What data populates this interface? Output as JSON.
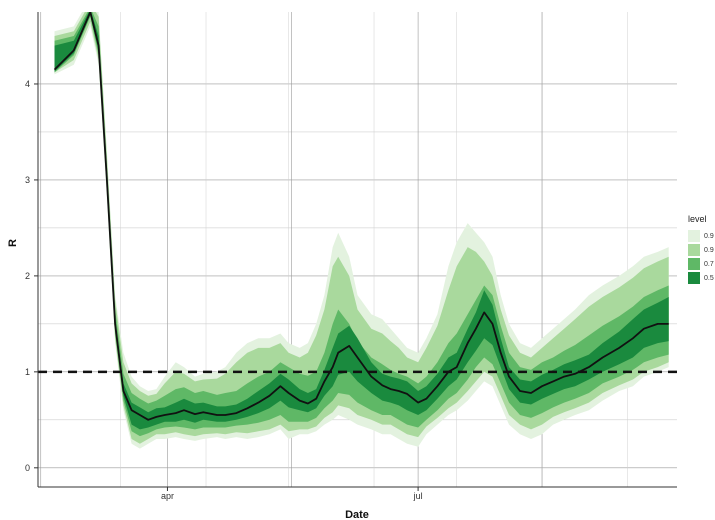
{
  "chart_data": {
    "type": "area",
    "xlabel": "Date",
    "ylabel": "R",
    "x_axis": {
      "type": "date",
      "range": [
        "2020-02-14",
        "2020-10-03"
      ],
      "ticks": [
        "2020-04-01",
        "2020-07-01"
      ],
      "tick_labels": [
        "apr",
        "jul"
      ]
    },
    "y_axis": {
      "range": [
        -0.2,
        4.75
      ],
      "ticks": [
        0,
        1,
        2,
        3,
        4
      ],
      "tick_labels": [
        "0",
        "1",
        "2",
        "3",
        "4"
      ]
    },
    "grid": true,
    "reference_line": {
      "y": 1,
      "style": "dashed"
    },
    "legend": {
      "title": "level",
      "position": "right",
      "labels": [
        "0.9",
        "0.9",
        "0.7",
        "0.5"
      ],
      "colors": [
        "#e3f2df",
        "#a9d99d",
        "#5fb866",
        "#1a8a3e"
      ]
    },
    "colors": {
      "line": "#111111",
      "band_outer": "#e3f2df",
      "band_2": "#a9d99d",
      "band_3": "#5fb866",
      "band_inner": "#1a8a3e"
    },
    "series": [
      {
        "x": [
          "2020-02-20",
          "2020-02-27",
          "2020-03-04",
          "2020-03-07",
          "2020-03-10",
          "2020-03-13",
          "2020-03-16",
          "2020-03-19",
          "2020-03-22",
          "2020-03-25",
          "2020-03-28",
          "2020-03-31",
          "2020-04-04",
          "2020-04-07",
          "2020-04-11",
          "2020-04-14",
          "2020-04-19",
          "2020-04-22",
          "2020-04-26",
          "2020-04-30",
          "2020-05-04",
          "2020-05-08",
          "2020-05-12",
          "2020-05-15",
          "2020-05-19",
          "2020-05-22",
          "2020-05-25",
          "2020-05-28",
          "2020-05-31",
          "2020-06-02",
          "2020-06-06",
          "2020-06-09",
          "2020-06-14",
          "2020-06-18",
          "2020-06-21",
          "2020-06-24",
          "2020-06-27",
          "2020-07-01",
          "2020-07-04",
          "2020-07-08",
          "2020-07-12",
          "2020-07-15",
          "2020-07-19",
          "2020-07-22",
          "2020-07-25",
          "2020-07-28",
          "2020-07-31",
          "2020-08-03",
          "2020-08-07",
          "2020-08-11",
          "2020-08-15",
          "2020-08-19",
          "2020-08-23",
          "2020-08-27",
          "2020-09-01",
          "2020-09-06",
          "2020-09-12",
          "2020-09-17",
          "2020-09-21",
          "2020-09-26",
          "2020-09-30"
        ],
        "median": [
          4.15,
          4.35,
          4.75,
          4.4,
          3.0,
          1.5,
          0.8,
          0.6,
          0.55,
          0.5,
          0.53,
          0.55,
          0.57,
          0.6,
          0.56,
          0.58,
          0.55,
          0.55,
          0.57,
          0.62,
          0.68,
          0.75,
          0.85,
          0.78,
          0.7,
          0.67,
          0.72,
          0.9,
          1.05,
          1.2,
          1.27,
          1.15,
          0.95,
          0.86,
          0.82,
          0.8,
          0.77,
          0.68,
          0.72,
          0.85,
          1.0,
          1.05,
          1.3,
          1.45,
          1.62,
          1.5,
          1.2,
          0.95,
          0.8,
          0.78,
          0.85,
          0.9,
          0.95,
          0.98,
          1.05,
          1.15,
          1.25,
          1.35,
          1.45,
          1.5,
          1.5
        ],
        "level_0.9_outer": {
          "lower": [
            4.1,
            4.2,
            4.6,
            4.2,
            2.8,
            1.3,
            0.6,
            0.25,
            0.2,
            0.25,
            0.3,
            0.3,
            0.32,
            0.3,
            0.28,
            0.3,
            0.32,
            0.3,
            0.32,
            0.3,
            0.32,
            0.35,
            0.4,
            0.3,
            0.35,
            0.35,
            0.38,
            0.45,
            0.5,
            0.55,
            0.5,
            0.45,
            0.4,
            0.35,
            0.35,
            0.3,
            0.25,
            0.22,
            0.35,
            0.45,
            0.55,
            0.6,
            0.7,
            0.8,
            0.9,
            0.85,
            0.65,
            0.45,
            0.35,
            0.3,
            0.35,
            0.45,
            0.5,
            0.55,
            0.6,
            0.7,
            0.8,
            0.85,
            0.95,
            1.0,
            1.05
          ],
          "upper": [
            4.55,
            4.6,
            4.9,
            4.75,
            3.3,
            1.8,
            1.2,
            0.95,
            0.85,
            0.8,
            0.82,
            0.95,
            1.1,
            1.05,
            0.95,
            0.98,
            1.0,
            1.05,
            1.2,
            1.3,
            1.35,
            1.35,
            1.4,
            1.3,
            1.25,
            1.3,
            1.5,
            1.8,
            2.3,
            2.45,
            2.2,
            1.8,
            1.6,
            1.55,
            1.45,
            1.35,
            1.25,
            1.2,
            1.35,
            1.6,
            2.1,
            2.35,
            2.55,
            2.45,
            2.35,
            2.2,
            1.8,
            1.5,
            1.3,
            1.25,
            1.35,
            1.45,
            1.55,
            1.65,
            1.8,
            1.9,
            2.0,
            2.1,
            2.2,
            2.25,
            2.3
          ]
        },
        "level_0.9_inner": {
          "lower": [
            4.12,
            4.25,
            4.65,
            4.25,
            2.85,
            1.35,
            0.65,
            0.3,
            0.25,
            0.3,
            0.35,
            0.35,
            0.37,
            0.35,
            0.33,
            0.35,
            0.36,
            0.35,
            0.37,
            0.36,
            0.38,
            0.4,
            0.45,
            0.38,
            0.4,
            0.4,
            0.43,
            0.52,
            0.58,
            0.65,
            0.62,
            0.55,
            0.5,
            0.45,
            0.45,
            0.4,
            0.35,
            0.32,
            0.43,
            0.52,
            0.62,
            0.68,
            0.8,
            0.9,
            1.0,
            0.95,
            0.75,
            0.55,
            0.45,
            0.4,
            0.45,
            0.53,
            0.58,
            0.62,
            0.68,
            0.78,
            0.86,
            0.92,
            1.0,
            1.05,
            1.1
          ],
          "upper": [
            4.5,
            4.55,
            4.85,
            4.7,
            3.25,
            1.75,
            1.1,
            0.88,
            0.8,
            0.75,
            0.77,
            0.88,
            1.0,
            0.98,
            0.9,
            0.92,
            0.93,
            0.98,
            1.1,
            1.2,
            1.25,
            1.25,
            1.3,
            1.2,
            1.15,
            1.2,
            1.38,
            1.65,
            2.1,
            2.2,
            2.0,
            1.65,
            1.45,
            1.4,
            1.32,
            1.25,
            1.15,
            1.1,
            1.25,
            1.48,
            1.85,
            2.1,
            2.3,
            2.25,
            2.15,
            2.0,
            1.65,
            1.38,
            1.2,
            1.15,
            1.25,
            1.35,
            1.45,
            1.55,
            1.68,
            1.78,
            1.88,
            1.98,
            2.08,
            2.15,
            2.2
          ]
        },
        "level_0.7": {
          "lower": [
            4.12,
            4.3,
            4.7,
            4.3,
            2.9,
            1.4,
            0.7,
            0.38,
            0.33,
            0.36,
            0.4,
            0.42,
            0.43,
            0.42,
            0.4,
            0.42,
            0.42,
            0.42,
            0.44,
            0.45,
            0.47,
            0.5,
            0.55,
            0.48,
            0.48,
            0.48,
            0.52,
            0.62,
            0.7,
            0.78,
            0.76,
            0.68,
            0.6,
            0.55,
            0.55,
            0.5,
            0.45,
            0.42,
            0.5,
            0.6,
            0.72,
            0.78,
            0.92,
            1.05,
            1.15,
            1.08,
            0.88,
            0.68,
            0.55,
            0.52,
            0.57,
            0.63,
            0.68,
            0.72,
            0.78,
            0.88,
            0.95,
            1.02,
            1.1,
            1.15,
            1.18
          ],
          "upper": [
            4.45,
            4.5,
            4.8,
            4.6,
            3.15,
            1.65,
            0.98,
            0.78,
            0.72,
            0.67,
            0.7,
            0.75,
            0.82,
            0.84,
            0.78,
            0.8,
            0.76,
            0.78,
            0.8,
            0.88,
            0.95,
            1.0,
            1.1,
            1.05,
            0.98,
            0.96,
            1.0,
            1.2,
            1.5,
            1.65,
            1.5,
            1.32,
            1.15,
            1.08,
            1.02,
            0.98,
            0.95,
            0.88,
            0.95,
            1.1,
            1.3,
            1.4,
            1.6,
            1.75,
            1.9,
            1.8,
            1.48,
            1.2,
            1.05,
            1.02,
            1.1,
            1.15,
            1.22,
            1.28,
            1.38,
            1.48,
            1.58,
            1.68,
            1.78,
            1.85,
            1.9
          ]
        },
        "level_0.5": {
          "lower": [
            4.13,
            4.32,
            4.72,
            4.35,
            2.95,
            1.45,
            0.75,
            0.45,
            0.4,
            0.42,
            0.45,
            0.48,
            0.48,
            0.5,
            0.47,
            0.5,
            0.48,
            0.48,
            0.5,
            0.53,
            0.57,
            0.62,
            0.7,
            0.63,
            0.6,
            0.58,
            0.62,
            0.75,
            0.85,
            0.97,
            1.0,
            0.9,
            0.78,
            0.7,
            0.68,
            0.65,
            0.6,
            0.55,
            0.6,
            0.72,
            0.85,
            0.92,
            1.1,
            1.22,
            1.35,
            1.28,
            1.05,
            0.82,
            0.68,
            0.66,
            0.72,
            0.77,
            0.82,
            0.85,
            0.92,
            1.0,
            1.08,
            1.15,
            1.25,
            1.3,
            1.32
          ],
          "upper": [
            4.4,
            4.45,
            4.78,
            4.5,
            3.05,
            1.55,
            0.88,
            0.68,
            0.63,
            0.58,
            0.62,
            0.63,
            0.68,
            0.72,
            0.67,
            0.68,
            0.64,
            0.64,
            0.66,
            0.72,
            0.8,
            0.88,
            0.98,
            0.92,
            0.82,
            0.78,
            0.82,
            1.02,
            1.25,
            1.4,
            1.48,
            1.35,
            1.1,
            0.98,
            0.95,
            0.93,
            0.9,
            0.8,
            0.85,
            0.98,
            1.15,
            1.2,
            1.45,
            1.62,
            1.85,
            1.7,
            1.35,
            1.05,
            0.92,
            0.9,
            0.97,
            1.02,
            1.08,
            1.12,
            1.18,
            1.3,
            1.42,
            1.55,
            1.65,
            1.72,
            1.78
          ]
        }
      }
    ]
  }
}
